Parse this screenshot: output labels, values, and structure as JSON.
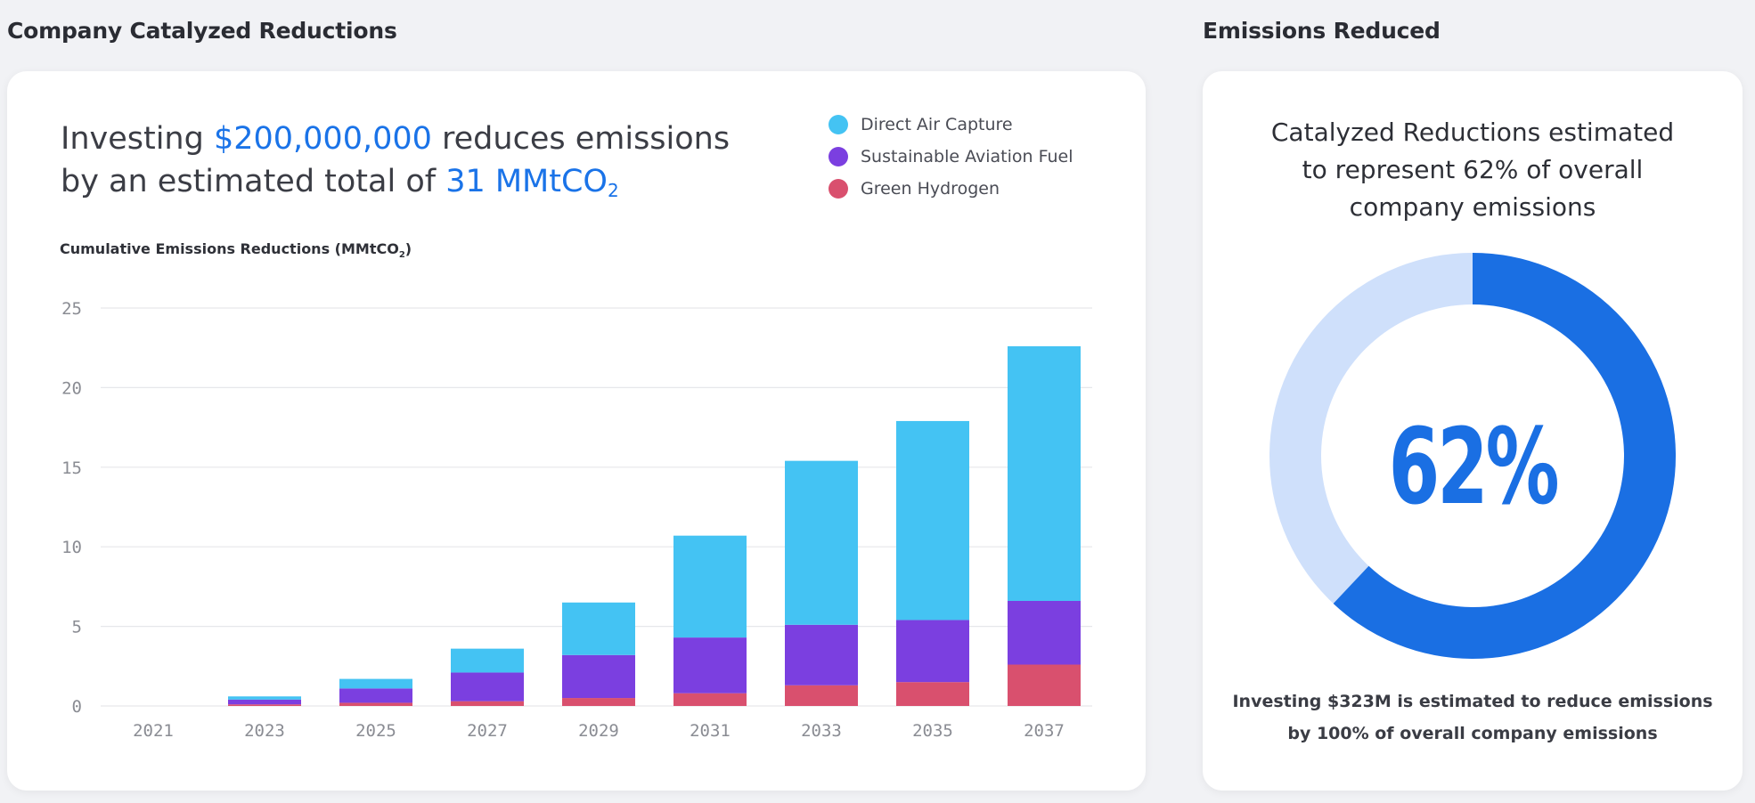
{
  "left_section": {
    "title": "Company Catalyzed Reductions"
  },
  "right_section": {
    "title": "Emissions Reduced"
  },
  "headline": {
    "line1_pre": "Investing ",
    "amount": "$200,000,000",
    "line1_post": " reduces emissions",
    "line2_pre": "by an estimated total of ",
    "total": "31 MMtCO",
    "total_sub": "2"
  },
  "chart_subtitle": {
    "text": "Cumulative Emissions Reductions (MMtCO",
    "sub": "2",
    "close": ")"
  },
  "colors": {
    "direct_air_capture": "#44c3f3",
    "sustainable_aviation_fuel": "#7b3fe0",
    "green_hydrogen": "#d9506e",
    "donut_main": "#1a6fe3",
    "donut_rest": "#cfe0fb"
  },
  "chart_data": {
    "type": "bar",
    "stacked": true,
    "categories": [
      "2021",
      "2023",
      "2025",
      "2027",
      "2029",
      "2031",
      "2033",
      "2035",
      "2037"
    ],
    "series": [
      {
        "name": "Green Hydrogen",
        "values": [
          0,
          0.1,
          0.2,
          0.3,
          0.5,
          0.8,
          1.3,
          1.5,
          2.6
        ]
      },
      {
        "name": "Sustainable Aviation Fuel",
        "values": [
          0,
          0.3,
          0.9,
          1.8,
          2.7,
          3.5,
          3.8,
          3.9,
          4.0
        ]
      },
      {
        "name": "Direct Air Capture",
        "values": [
          0,
          0.2,
          0.6,
          1.5,
          3.3,
          6.4,
          10.3,
          12.5,
          16.0
        ]
      }
    ],
    "yticks": [
      "0",
      "5",
      "10",
      "15",
      "20",
      "25"
    ],
    "ylim": [
      0,
      25
    ],
    "legend": [
      "Direct Air Capture",
      "Sustainable Aviation Fuel",
      "Green Hydrogen"
    ],
    "legend_position": "top-right",
    "grid": true
  },
  "donut": {
    "title_lines": [
      "Catalyzed Reductions estimated",
      "to represent 62% of overall",
      "company emissions"
    ],
    "value": 62,
    "label": "62%",
    "footer_lines": [
      "Investing $323M is estimated to reduce emissions",
      "by 100% of overall company emissions"
    ]
  }
}
